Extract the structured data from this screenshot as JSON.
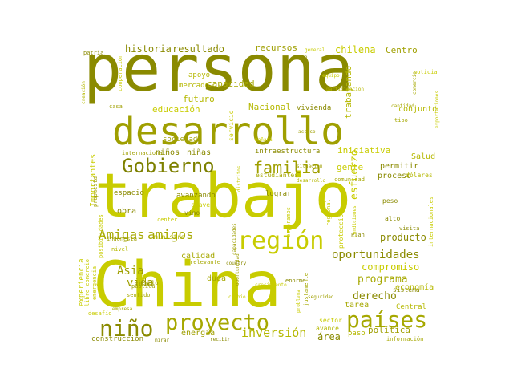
{
  "cloud": {
    "palette": [
      "#8a8a00",
      "#9f9f00",
      "#b5b800",
      "#c8cc00",
      "#d6db00",
      "#a6a800",
      "#7d8000"
    ],
    "words": [
      {
        "text": "persona",
        "weight": 100,
        "color": "#8a8a00",
        "orientation": "horizontal"
      },
      {
        "text": "trabajo",
        "weight": 95,
        "color": "#c8cc00",
        "orientation": "horizontal"
      },
      {
        "text": "China",
        "weight": 93,
        "color": "#c8cc00",
        "orientation": "horizontal"
      },
      {
        "text": "desarrollo",
        "weight": 75,
        "color": "#9f9f00",
        "orientation": "horizontal"
      },
      {
        "text": "países",
        "weight": 50,
        "color": "#a6a800",
        "orientation": "horizontal"
      },
      {
        "text": "proyecto",
        "weight": 48,
        "color": "#a6a800",
        "orientation": "horizontal"
      },
      {
        "text": "región",
        "weight": 45,
        "color": "#c8cc00",
        "orientation": "horizontal"
      },
      {
        "text": "Gobierno",
        "weight": 44,
        "color": "#7d8000",
        "orientation": "horizontal"
      },
      {
        "text": "niño",
        "weight": 42,
        "color": "#8a8a00",
        "orientation": "horizontal"
      },
      {
        "text": "familia",
        "weight": 35,
        "color": "#9f9f00",
        "orientation": "horizontal"
      },
      {
        "text": "Amigas",
        "weight": 30,
        "color": "#a6a800",
        "orientation": "horizontal"
      },
      {
        "text": "amigos",
        "weight": 30,
        "color": "#a6a800",
        "orientation": "horizontal"
      },
      {
        "text": "oportunidades",
        "weight": 28,
        "color": "#8a8a00",
        "orientation": "horizontal"
      },
      {
        "text": "inversión",
        "weight": 26,
        "color": "#b5b800",
        "orientation": "horizontal"
      },
      {
        "text": "Asia",
        "weight": 24,
        "color": "#9f9f00",
        "orientation": "horizontal"
      },
      {
        "text": "vida",
        "weight": 24,
        "color": "#9f9f00",
        "orientation": "horizontal"
      },
      {
        "text": "programa",
        "weight": 22,
        "color": "#a6a800",
        "orientation": "horizontal"
      },
      {
        "text": "derecho",
        "weight": 22,
        "color": "#8a8a00",
        "orientation": "horizontal"
      },
      {
        "text": "compromiso",
        "weight": 21,
        "color": "#c8cc00",
        "orientation": "horizontal"
      },
      {
        "text": "producto",
        "weight": 21,
        "color": "#8a8a00",
        "orientation": "horizontal"
      },
      {
        "text": "historia",
        "weight": 20,
        "color": "#8a8a00",
        "orientation": "horizontal"
      },
      {
        "text": "resultado",
        "weight": 20,
        "color": "#8a8a00",
        "orientation": "horizontal"
      },
      {
        "text": "recursos",
        "weight": 18,
        "color": "#9f9f00",
        "orientation": "horizontal"
      },
      {
        "text": "chilena",
        "weight": 20,
        "color": "#c8cc00",
        "orientation": "horizontal"
      },
      {
        "text": "Centro",
        "weight": 18,
        "color": "#9f9f00",
        "orientation": "horizontal"
      },
      {
        "text": "capacidad",
        "weight": 18,
        "color": "#a6a800",
        "orientation": "horizontal"
      },
      {
        "text": "educación",
        "weight": 18,
        "color": "#c8cc00",
        "orientation": "horizontal"
      },
      {
        "text": "futuro",
        "weight": 17,
        "color": "#b5b800",
        "orientation": "horizontal"
      },
      {
        "text": "Nacional",
        "weight": 17,
        "color": "#b5b800",
        "orientation": "horizontal"
      },
      {
        "text": "vivienda",
        "weight": 15,
        "color": "#8a8a00",
        "orientation": "horizontal"
      },
      {
        "text": "conjunto",
        "weight": 15,
        "color": "#b5b800",
        "orientation": "horizontal"
      },
      {
        "text": "trabajando",
        "weight": 16,
        "color": "#b5b800",
        "orientation": "vertical"
      },
      {
        "text": "iniciativa",
        "weight": 17,
        "color": "#c8cc00",
        "orientation": "horizontal"
      },
      {
        "text": "Salud",
        "weight": 16,
        "color": "#b5b800",
        "orientation": "horizontal"
      },
      {
        "text": "infraestructura",
        "weight": 15,
        "color": "#8a8a00",
        "orientation": "horizontal"
      },
      {
        "text": "niños",
        "weight": 15,
        "color": "#8a8a00",
        "orientation": "horizontal"
      },
      {
        "text": "niñas",
        "weight": 15,
        "color": "#8a8a00",
        "orientation": "horizontal"
      },
      {
        "text": "esfuerzo",
        "weight": 20,
        "color": "#c8cc00",
        "orientation": "vertical"
      },
      {
        "text": "gente",
        "weight": 16,
        "color": "#c8cc00",
        "orientation": "horizontal"
      },
      {
        "text": "permitir",
        "weight": 15,
        "color": "#8a8a00",
        "orientation": "horizontal"
      },
      {
        "text": "proceso",
        "weight": 15,
        "color": "#8a8a00",
        "orientation": "horizontal"
      },
      {
        "text": "espacio",
        "weight": 14,
        "color": "#8a8a00",
        "orientation": "horizontal"
      },
      {
        "text": "avanzando",
        "weight": 14,
        "color": "#8a8a00",
        "orientation": "horizontal"
      },
      {
        "text": "lograr",
        "weight": 13,
        "color": "#8a8a00",
        "orientation": "horizontal"
      },
      {
        "text": "obra",
        "weight": 14,
        "color": "#8a8a00",
        "orientation": "horizontal"
      },
      {
        "text": "calidad",
        "weight": 14,
        "color": "#a6a800",
        "orientation": "horizontal"
      },
      {
        "text": "duda",
        "weight": 13,
        "color": "#a6a800",
        "orientation": "horizontal"
      },
      {
        "text": "Importantes",
        "weight": 13,
        "color": "#c8cc00",
        "orientation": "vertical"
      },
      {
        "text": "experiencia",
        "weight": 13,
        "color": "#c8cc00",
        "orientation": "vertical"
      },
      {
        "text": "economía",
        "weight": 14,
        "color": "#b5b800",
        "orientation": "horizontal"
      },
      {
        "text": "tarea",
        "weight": 13,
        "color": "#a6a800",
        "orientation": "horizontal"
      },
      {
        "text": "Central",
        "weight": 13,
        "color": "#b5b800",
        "orientation": "horizontal"
      },
      {
        "text": "política",
        "weight": 15,
        "color": "#9f9f00",
        "orientation": "horizontal"
      },
      {
        "text": "área",
        "weight": 15,
        "color": "#8a8a00",
        "orientation": "horizontal"
      },
      {
        "text": "energía",
        "weight": 14,
        "color": "#9f9f00",
        "orientation": "horizontal"
      },
      {
        "text": "construcción",
        "weight": 13,
        "color": "#8a8a00",
        "orientation": "horizontal"
      },
      {
        "text": "paso",
        "weight": 13,
        "color": "#b5b800",
        "orientation": "horizontal"
      },
      {
        "text": "sociedad",
        "weight": 13,
        "color": "#9f9f00",
        "orientation": "horizontal"
      },
      {
        "text": "apoyo",
        "weight": 13,
        "color": "#b5b800",
        "orientation": "horizontal"
      },
      {
        "text": "mercado",
        "weight": 13,
        "color": "#b5b800",
        "orientation": "horizontal"
      },
      {
        "text": "internacional",
        "weight": 11,
        "color": "#9f9f00",
        "orientation": "horizontal"
      },
      {
        "text": "estudiantes",
        "weight": 11,
        "color": "#a6a800",
        "orientation": "horizontal"
      },
      {
        "text": "comunidad",
        "weight": 10,
        "color": "#a6a800",
        "orientation": "horizontal"
      },
      {
        "text": "dólares",
        "weight": 10,
        "color": "#b5b800",
        "orientation": "horizontal"
      },
      {
        "text": "alto",
        "weight": 11,
        "color": "#8a8a00",
        "orientation": "horizontal"
      },
      {
        "text": "peso",
        "weight": 11,
        "color": "#8a8a00",
        "orientation": "horizontal"
      },
      {
        "text": "visita",
        "weight": 10,
        "color": "#8a8a00",
        "orientation": "horizontal"
      },
      {
        "text": "Plan",
        "weight": 10,
        "color": "#8a8a00",
        "orientation": "horizontal"
      },
      {
        "text": "sistema",
        "weight": 11,
        "color": "#8a8a00",
        "orientation": "horizontal"
      },
      {
        "text": "sector",
        "weight": 11,
        "color": "#c8cc00",
        "orientation": "horizontal"
      },
      {
        "text": "avance",
        "weight": 11,
        "color": "#b5b800",
        "orientation": "horizontal"
      },
      {
        "text": "información",
        "weight": 10,
        "color": "#a6a800",
        "orientation": "horizontal"
      },
      {
        "text": "ministro",
        "weight": 11,
        "color": "#b5b800",
        "orientation": "horizontal"
      },
      {
        "text": "indonesia",
        "weight": 10,
        "color": "#9f9f00",
        "orientation": "horizontal"
      },
      {
        "text": "nivel",
        "weight": 10,
        "color": "#b5b800",
        "orientation": "horizontal"
      },
      {
        "text": "relevante",
        "weight": 10,
        "color": "#a6a800",
        "orientation": "horizontal"
      },
      {
        "text": "clave",
        "weight": 11,
        "color": "#c8cc00",
        "orientation": "horizontal"
      },
      {
        "text": "vino",
        "weight": 11,
        "color": "#8a8a00",
        "orientation": "horizontal"
      },
      {
        "text": "center",
        "weight": 10,
        "color": "#c8cc00",
        "orientation": "horizontal"
      },
      {
        "text": "propuesta",
        "weight": 10,
        "color": "#9f9f00",
        "orientation": "vertical"
      },
      {
        "text": "ejemplo",
        "weight": 10,
        "color": "#9f9f00",
        "orientation": "horizontal"
      },
      {
        "text": "sentido",
        "weight": 10,
        "color": "#a6a800",
        "orientation": "horizontal"
      },
      {
        "text": "pública",
        "weight": 10,
        "color": "#9f9f00",
        "orientation": "horizontal"
      },
      {
        "text": "empresa",
        "weight": 9,
        "color": "#a6a800",
        "orientation": "horizontal"
      },
      {
        "text": "desafío",
        "weight": 10,
        "color": "#c8cc00",
        "orientation": "horizontal"
      },
      {
        "text": "emergencia",
        "weight": 10,
        "color": "#c8cc00",
        "orientation": "vertical"
      },
      {
        "text": "libre comercio",
        "weight": 10,
        "color": "#c8cc00",
        "orientation": "vertical"
      },
      {
        "text": "posibilidades",
        "weight": 10,
        "color": "#c8cc00",
        "orientation": "vertical"
      },
      {
        "text": "servicio",
        "weight": 11,
        "color": "#c8cc00",
        "orientation": "vertical"
      },
      {
        "text": "protección",
        "weight": 11,
        "color": "#c8cc00",
        "orientation": "vertical"
      },
      {
        "text": "regional",
        "weight": 10,
        "color": "#c8cc00",
        "orientation": "vertical"
      },
      {
        "text": "cooperación",
        "weight": 10,
        "color": "#c8cc00",
        "orientation": "vertical"
      },
      {
        "text": "justamente",
        "weight": 10,
        "color": "#a6a800",
        "orientation": "vertical"
      },
      {
        "text": "internacionales",
        "weight": 10,
        "color": "#c8cc00",
        "orientation": "vertical"
      },
      {
        "text": "exportaciones",
        "weight": 9,
        "color": "#c8cc00",
        "orientation": "vertical"
      },
      {
        "text": "enorme",
        "weight": 10,
        "color": "#8a8a00",
        "orientation": "horizontal"
      },
      {
        "text": "seguridad",
        "weight": 9,
        "color": "#9f9f00",
        "orientation": "horizontal"
      },
      {
        "text": "country",
        "weight": 9,
        "color": "#8a8a00",
        "orientation": "horizontal"
      },
      {
        "text": "patria",
        "weight": 10,
        "color": "#8a8a00",
        "orientation": "horizontal"
      },
      {
        "text": "creación",
        "weight": 9,
        "color": "#b5b800",
        "orientation": "vertical"
      },
      {
        "text": "casa",
        "weight": 9,
        "color": "#9f9f00",
        "orientation": "horizontal"
      },
      {
        "text": "hijo",
        "weight": 9,
        "color": "#8a8a00",
        "orientation": "horizontal"
      },
      {
        "text": "tipo",
        "weight": 9,
        "color": "#a6a800",
        "orientation": "horizontal"
      },
      {
        "text": "comercio",
        "weight": 9,
        "color": "#a6a800",
        "orientation": "vertical"
      },
      {
        "text": "noticia",
        "weight": 9,
        "color": "#c8cc00",
        "orientation": "horizontal"
      },
      {
        "text": "acceso",
        "weight": 9,
        "color": "#9f9f00",
        "orientation": "horizontal"
      },
      {
        "text": "situación",
        "weight": 9,
        "color": "#9f9f00",
        "orientation": "horizontal"
      },
      {
        "text": "mañana",
        "weight": 9,
        "color": "#c8cc00",
        "orientation": "horizontal"
      },
      {
        "text": "cantidad",
        "weight": 9,
        "color": "#a6a800",
        "orientation": "horizontal"
      },
      {
        "text": "desarrollo",
        "weight": 9,
        "color": "#b5b800",
        "orientation": "horizontal"
      },
      {
        "text": "crecimiento",
        "weight": 9,
        "color": "#c8cc00",
        "orientation": "horizontal"
      },
      {
        "text": "esperamos",
        "weight": 9,
        "color": "#c8cc00",
        "orientation": "vertical"
      },
      {
        "text": "oportunidad",
        "weight": 9,
        "color": "#9f9f00",
        "orientation": "vertical"
      },
      {
        "text": "capacidades",
        "weight": 9,
        "color": "#9f9f00",
        "orientation": "vertical"
      },
      {
        "text": "distritos",
        "weight": 8,
        "color": "#c8cc00",
        "orientation": "vertical"
      },
      {
        "text": "condiciones",
        "weight": 8,
        "color": "#c8cc00",
        "orientation": "vertical"
      },
      {
        "text": "problema",
        "weight": 8,
        "color": "#c8cc00",
        "orientation": "vertical"
      },
      {
        "text": "recibir",
        "weight": 8,
        "color": "#8a8a00",
        "orientation": "horizontal"
      },
      {
        "text": "mirar",
        "weight": 8,
        "color": "#8a8a00",
        "orientation": "horizontal"
      },
      {
        "text": "cambio",
        "weight": 8,
        "color": "#c8cc00",
        "orientation": "horizontal"
      },
      {
        "text": "general",
        "weight": 8,
        "color": "#c8cc00",
        "orientation": "horizontal"
      },
      {
        "text": "equipo",
        "weight": 8,
        "color": "#c8cc00",
        "orientation": "horizontal"
      },
      {
        "text": "participación",
        "weight": 8,
        "color": "#b5b800",
        "orientation": "horizontal"
      }
    ]
  }
}
